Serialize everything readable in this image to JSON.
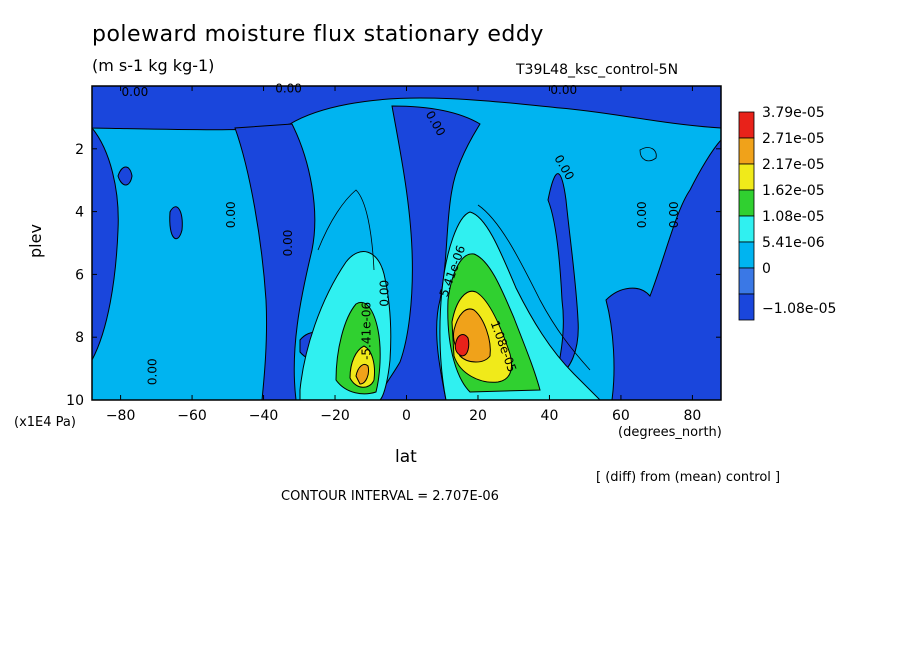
{
  "title": "poleward moisture flux stationary eddy",
  "units": "(m s-1 kg kg-1)",
  "run_label": "T39L48_ksc_control-5N",
  "note": "[ (diff) from (mean) control ]",
  "contour_interval": "CONTOUR INTERVAL = 2.707E-06",
  "chart_data": {
    "type": "heatmap",
    "xlabel": "lat",
    "x_units": "(degrees_north)",
    "ylabel": "plev",
    "y_units": "(x1E4 Pa)",
    "xlim": [
      -88,
      88
    ],
    "ylim": [
      10,
      0
    ],
    "x_ticks": [
      -80,
      -60,
      -40,
      -20,
      0,
      20,
      40,
      60,
      80
    ],
    "y_ticks": [
      2,
      4,
      6,
      8,
      10
    ],
    "legend_levels": [
      "3.79e-05",
      "2.71e-05",
      "2.17e-05",
      "1.62e-05",
      "1.08e-05",
      "5.41e-06",
      "0",
      "-1.08e-05"
    ],
    "legend_colors": [
      "#e8221a",
      "#f0a21a",
      "#f0ea1a",
      "#30d030",
      "#30f0f0",
      "#00b4f0",
      "#3a78e6",
      "#1a46dc"
    ],
    "contour_labels": [
      {
        "text": "0.00",
        "lat": -76,
        "plev": 0.2
      },
      {
        "text": "0.00",
        "lat": -33,
        "plev": 0.1
      },
      {
        "text": "0.00",
        "lat": 44,
        "plev": 0.15
      },
      {
        "text": "0.00",
        "lat": 8,
        "plev": 1.2
      },
      {
        "text": "0.00",
        "lat": 44,
        "plev": 2.6
      },
      {
        "text": "0.00",
        "lat": -49,
        "plev": 4.1
      },
      {
        "text": "0.00",
        "lat": -33,
        "plev": 5.0
      },
      {
        "text": "0.00",
        "lat": 66,
        "plev": 4.1
      },
      {
        "text": "0.00",
        "lat": 75,
        "plev": 4.1
      },
      {
        "text": "0.00",
        "lat": -6,
        "plev": 6.6
      },
      {
        "text": "-5.41e-06",
        "lat": -11,
        "plev": 7.8
      },
      {
        "text": "5.41e-06",
        "lat": 13,
        "plev": 5.9
      },
      {
        "text": "1.08e-05",
        "lat": 27,
        "plev": 8.3
      },
      {
        "text": "0.00",
        "lat": -71,
        "plev": 9.1
      }
    ],
    "field_description": "latitude-pressure cross section; strongest positive flux maxima near 15N at 8.5 plev (about 3.8e-05) and near -13 lat at 9.2 plev (about 2.2e-05); broad weakly negative background"
  }
}
